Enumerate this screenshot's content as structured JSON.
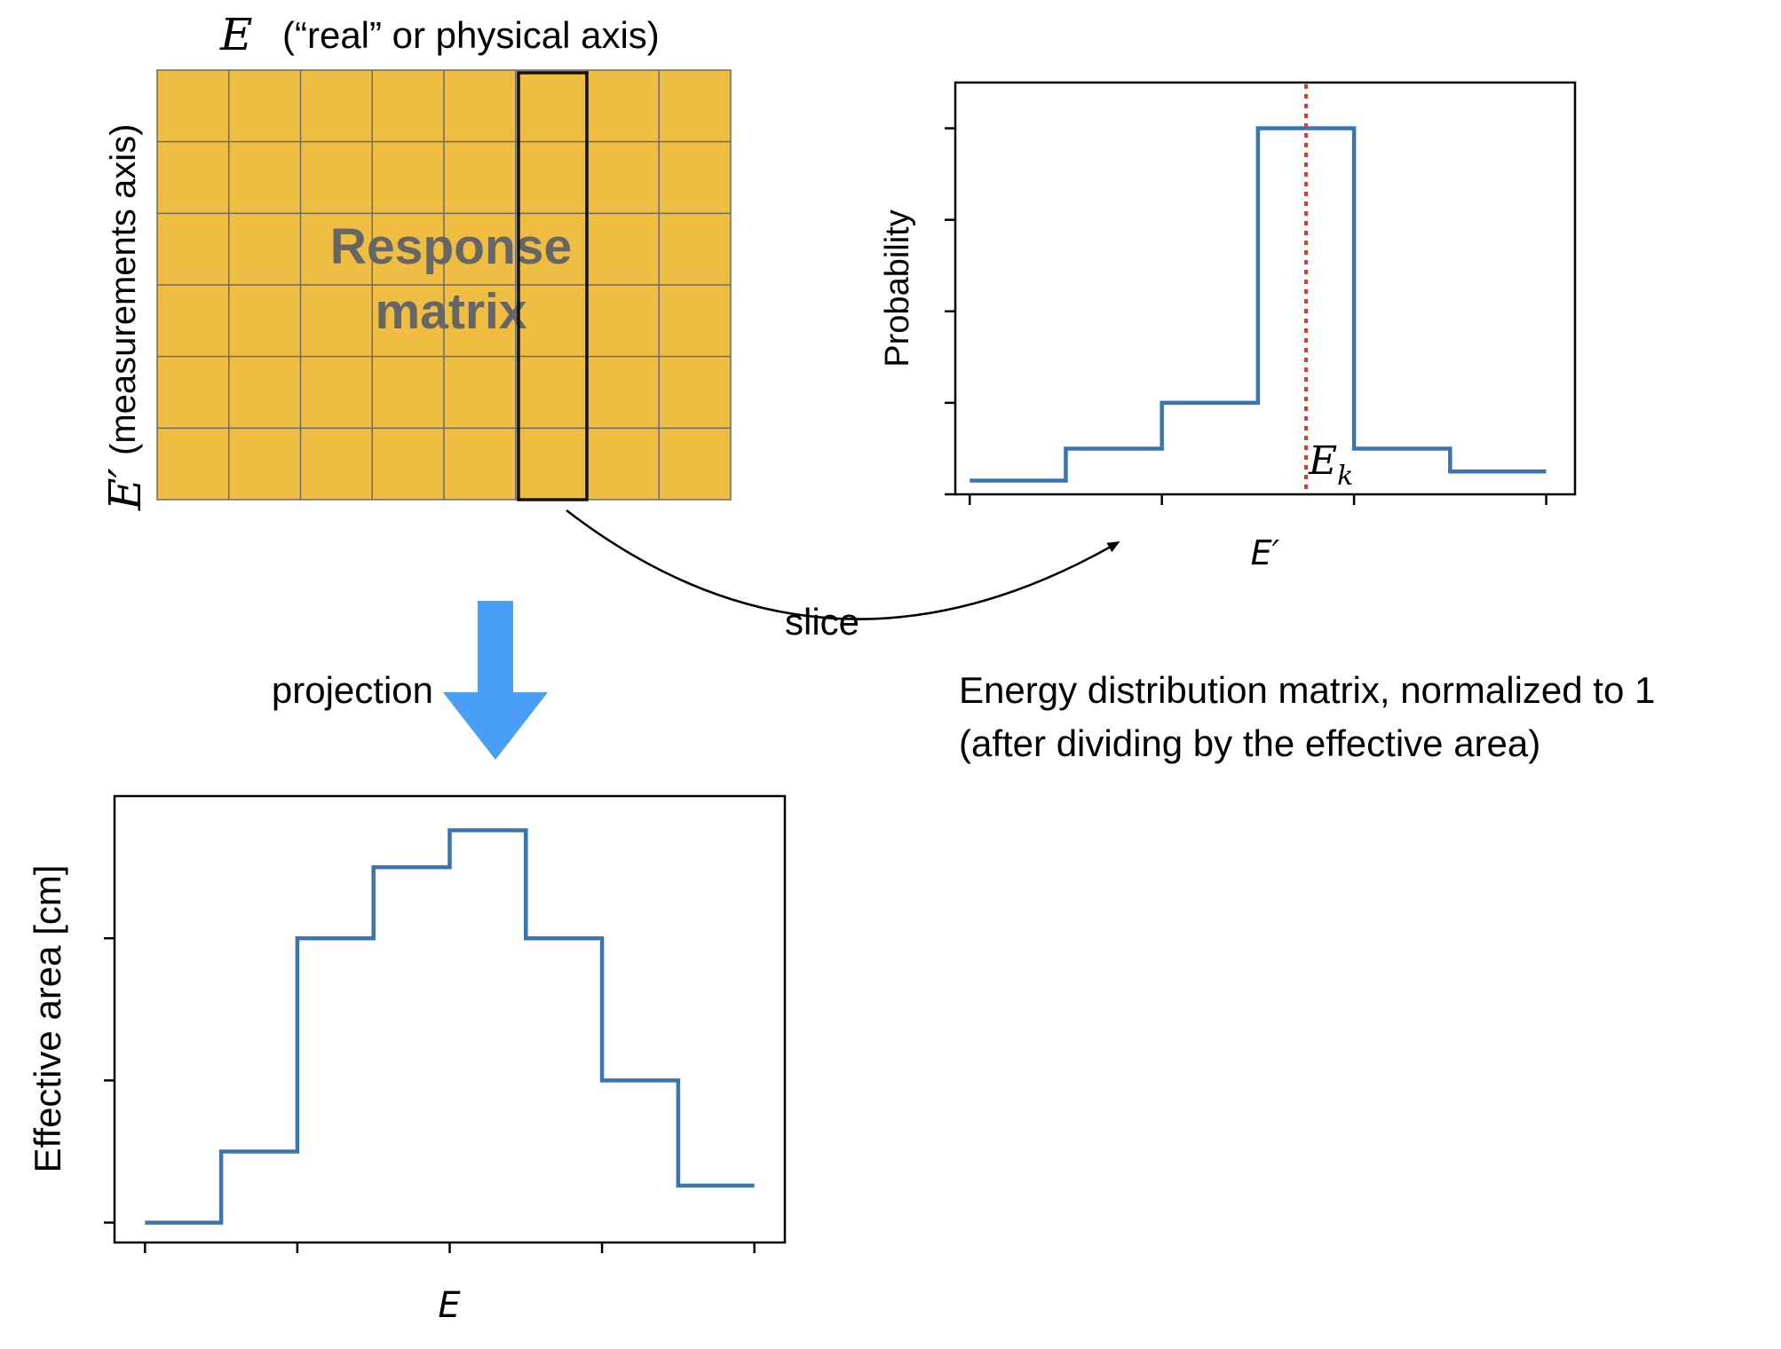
{
  "matrix": {
    "row_axis_symbol": "E",
    "row_axis_note": "(“real” or physical axis)",
    "col_axis_symbol": "E′",
    "col_axis_note": "(measurements axis)",
    "label_line1": "Response",
    "label_line2": "matrix",
    "n_cols": 8,
    "n_rows": 6,
    "highlighted_col": 5,
    "fill_color": "#EFBD42",
    "grid_color": "#6b6b6b",
    "label_color": "#666666"
  },
  "arrows": {
    "slice_label": "slice",
    "projection_label": "projection",
    "projection_arrow_color": "#4A9EF5"
  },
  "caption": {
    "line1": "Energy distribution matrix, normalized to 1",
    "line2": "(after dividing by the effective area)"
  },
  "chart_data": [
    {
      "type": "line",
      "step": "post",
      "name": "energy-dispersion-slice",
      "ylabel": "Probability",
      "xlabel": "E′",
      "marker_label": "E_k",
      "marker_x": 3.5,
      "marker_color": "#E8352E",
      "line_color": "#3A75B0",
      "x": [
        0,
        1,
        2,
        3,
        4,
        5,
        6
      ],
      "y": [
        0.03,
        0.1,
        0.2,
        0.8,
        0.1,
        0.05,
        0.05
      ],
      "xlim": [
        -0.15,
        6.3
      ],
      "ylim": [
        0,
        0.9
      ],
      "yticks": [
        0,
        0.2,
        0.4,
        0.6,
        0.8
      ],
      "xticks": [
        0,
        2,
        4,
        6
      ]
    },
    {
      "type": "line",
      "step": "post",
      "name": "effective-area",
      "ylabel": "Effective area [cm]",
      "xlabel": "E",
      "line_color": "#3A75B0",
      "x": [
        0,
        1,
        2,
        3,
        4,
        5,
        6,
        7,
        8
      ],
      "y": [
        0,
        0.25,
        1,
        1.25,
        1.38,
        1,
        0.5,
        0.13,
        0.13
      ],
      "xlim": [
        -0.4,
        8.4
      ],
      "ylim": [
        -0.07,
        1.5
      ],
      "yticks": [
        0,
        0.5,
        1.0
      ],
      "xticks": [
        0,
        2,
        4,
        6,
        8
      ]
    }
  ]
}
